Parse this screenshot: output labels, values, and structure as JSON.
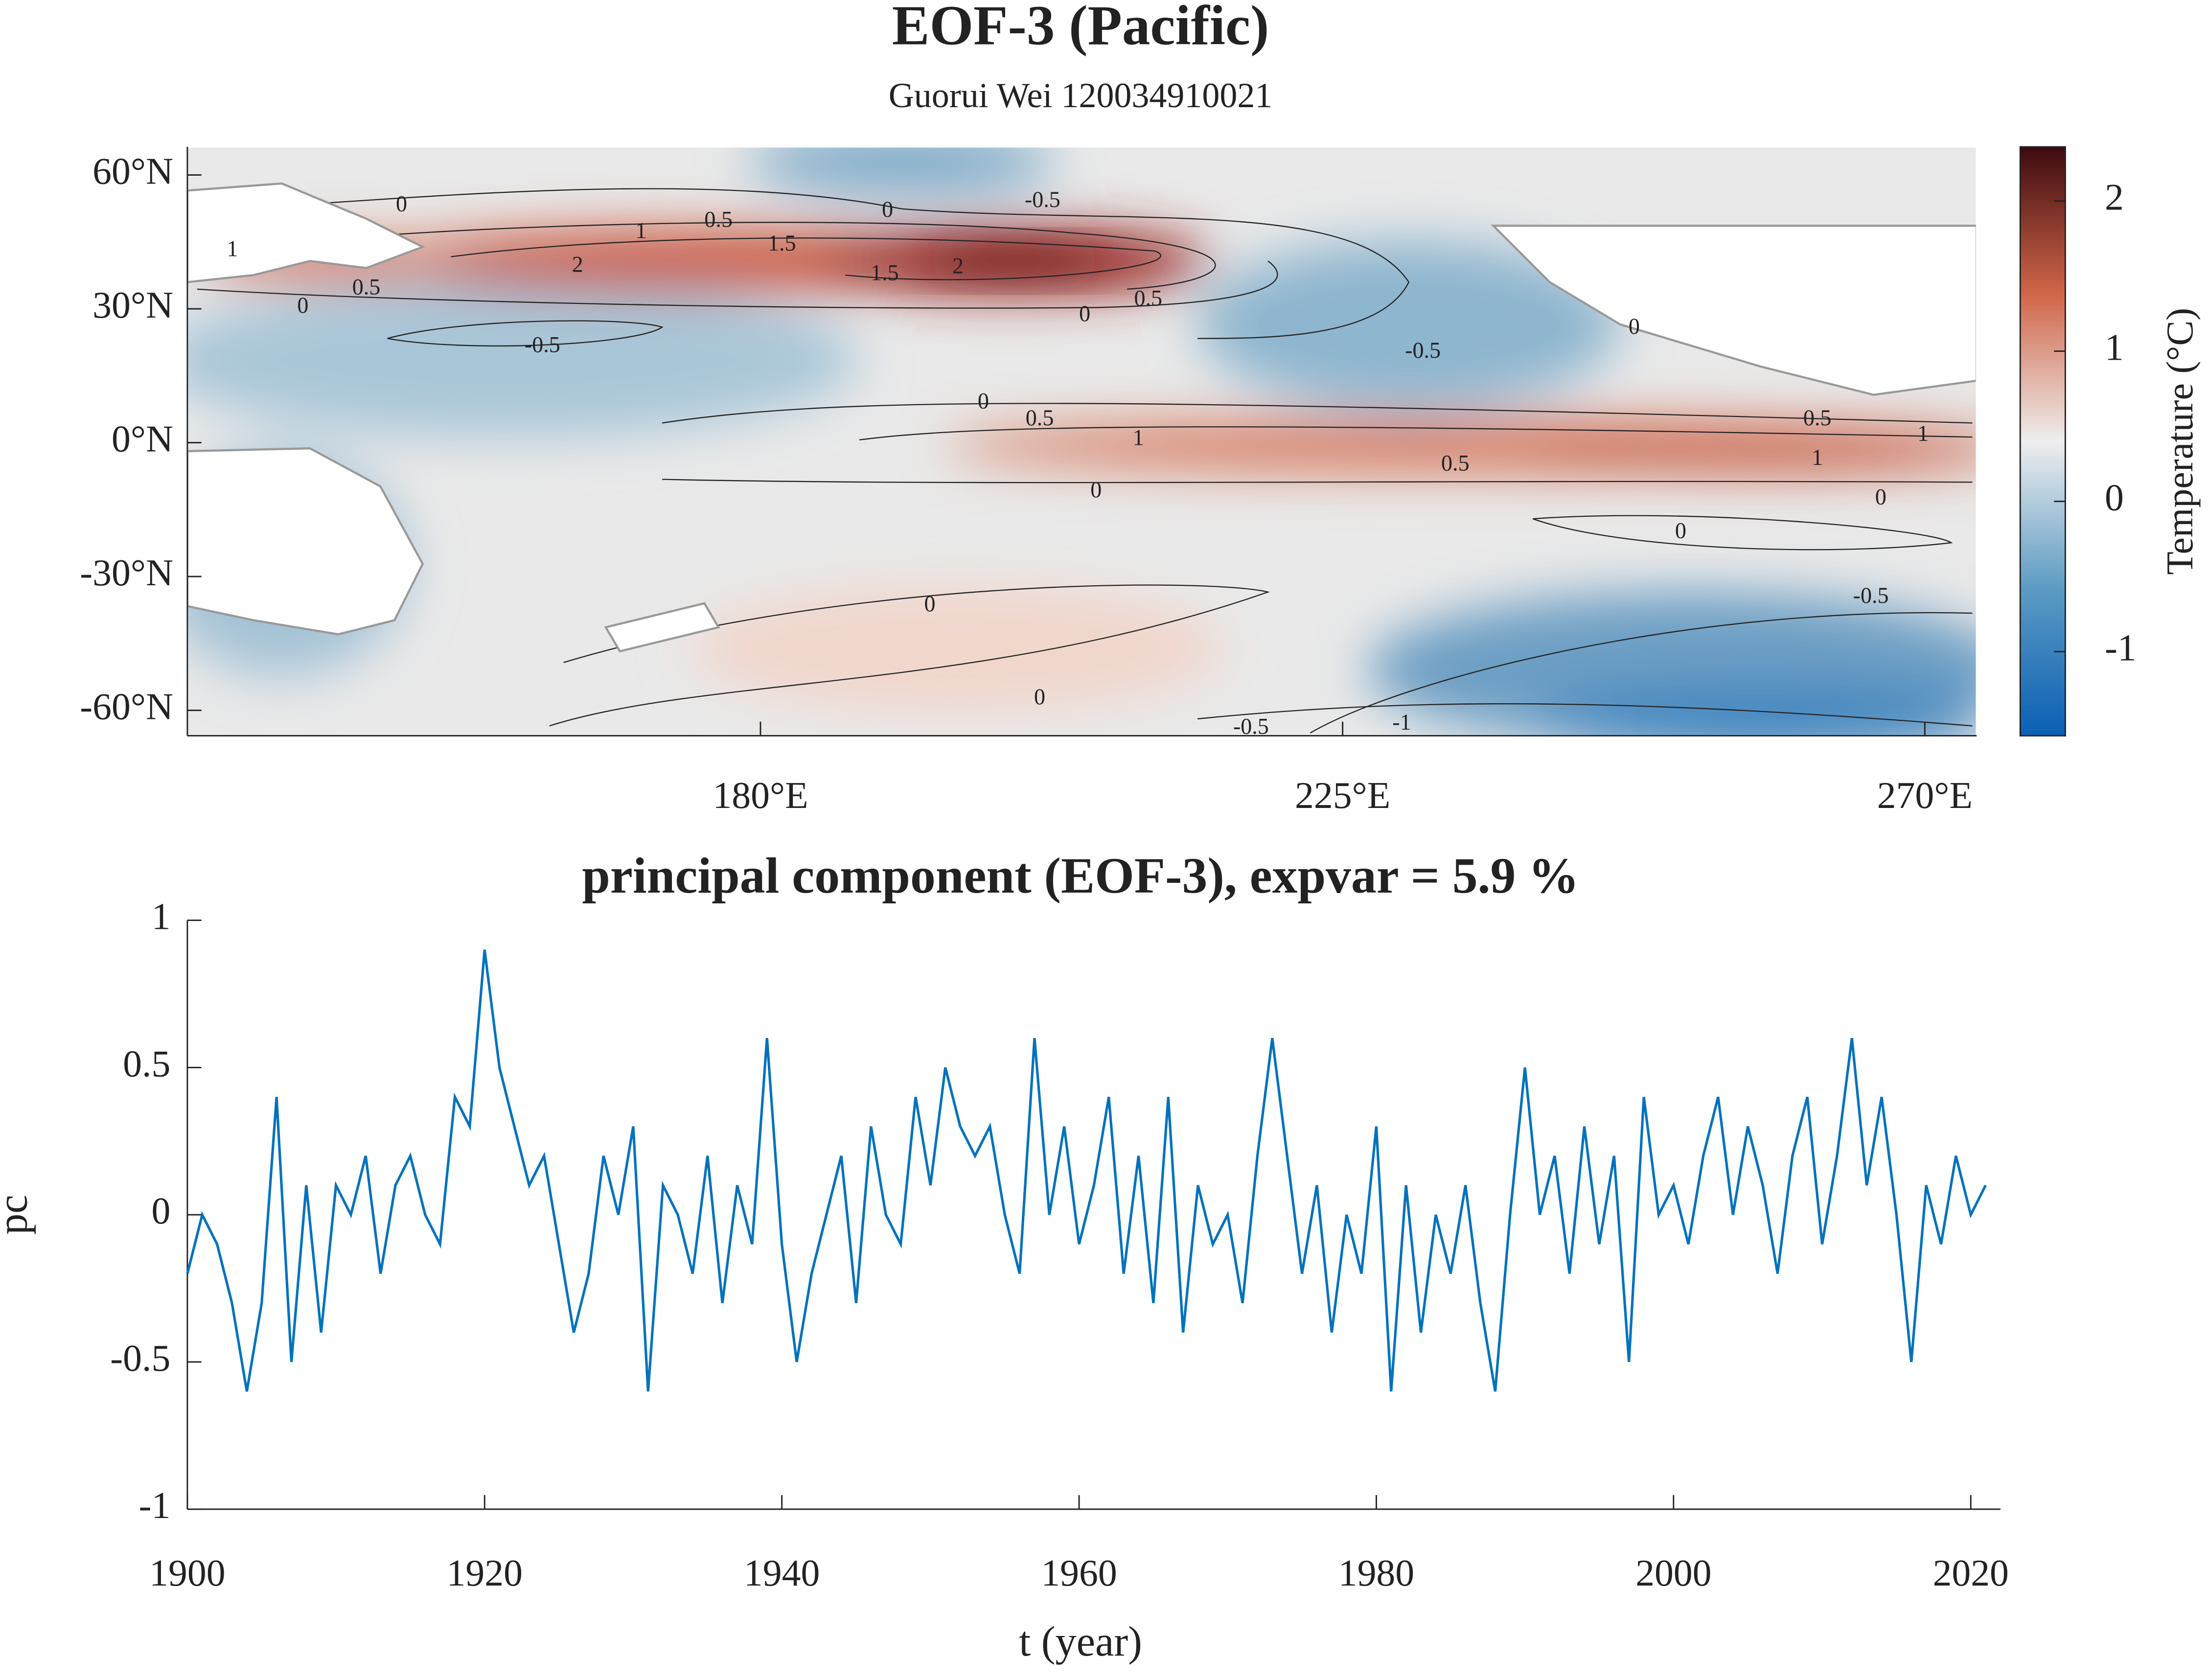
{
  "chart_data": [
    {
      "type": "map",
      "title": "EOF-3 (Pacific)",
      "subtitle": "Guorui Wei 120034910021",
      "xlim": [
        135.7,
        274
      ],
      "ylim": [
        -65.7,
        66.3
      ],
      "xticks": [
        {
          "value": 180,
          "label": "180°E"
        },
        {
          "value": 225,
          "label": "225°E"
        },
        {
          "value": 270,
          "label": "270°E"
        }
      ],
      "yticks": [
        {
          "value": 60,
          "label": "60°N"
        },
        {
          "value": 30,
          "label": "30°N"
        },
        {
          "value": 0,
          "label": "0°N"
        },
        {
          "value": -30,
          "label": "-30°N"
        },
        {
          "value": -60,
          "label": "-60°N"
        }
      ],
      "contour_levels": [
        -1,
        -0.5,
        0,
        0.5,
        1,
        1.5,
        2
      ],
      "colorbar": {
        "label": "Temperature (°C)",
        "lim": [
          -1.56,
          2.36
        ],
        "ticks": [
          -1,
          0,
          1,
          2
        ],
        "colors": [
          "#0a5fb4",
          "#5c9bc4",
          "#eeeeee",
          "#d06648",
          "#3d0a10"
        ]
      }
    },
    {
      "type": "line",
      "title": "principal component (EOF-3), expvar = 5.9 %",
      "xlabel": "t (year)",
      "ylabel": "pc",
      "xlim": [
        1900,
        2022
      ],
      "ylim": [
        -1,
        1
      ],
      "xticks": [
        1900,
        1920,
        1940,
        1960,
        1980,
        2000,
        2020
      ],
      "yticks": [
        -1,
        -0.5,
        0,
        0.5,
        1
      ],
      "x": [
        1900,
        1901,
        1902,
        1903,
        1904,
        1905,
        1906,
        1907,
        1908,
        1909,
        1910,
        1911,
        1912,
        1913,
        1914,
        1915,
        1916,
        1917,
        1918,
        1919,
        1920,
        1921,
        1922,
        1923,
        1924,
        1925,
        1926,
        1927,
        1928,
        1929,
        1930,
        1931,
        1932,
        1933,
        1934,
        1935,
        1936,
        1937,
        1938,
        1939,
        1940,
        1941,
        1942,
        1943,
        1944,
        1945,
        1946,
        1947,
        1948,
        1949,
        1950,
        1951,
        1952,
        1953,
        1954,
        1955,
        1956,
        1957,
        1958,
        1959,
        1960,
        1961,
        1962,
        1963,
        1964,
        1965,
        1966,
        1967,
        1968,
        1969,
        1970,
        1971,
        1972,
        1973,
        1974,
        1975,
        1976,
        1977,
        1978,
        1979,
        1980,
        1981,
        1982,
        1983,
        1984,
        1985,
        1986,
        1987,
        1988,
        1989,
        1990,
        1991,
        1992,
        1993,
        1994,
        1995,
        1996,
        1997,
        1998,
        1999,
        2000,
        2001,
        2002,
        2003,
        2004,
        2005,
        2006,
        2007,
        2008,
        2009,
        2010,
        2011,
        2012,
        2013,
        2014,
        2015,
        2016,
        2017,
        2018,
        2019,
        2020,
        2021
      ],
      "color": "#0072bd",
      "values": [
        -0.2,
        0.0,
        -0.1,
        -0.3,
        -0.6,
        -0.3,
        0.4,
        -0.5,
        0.1,
        -0.4,
        0.1,
        0.0,
        0.2,
        -0.2,
        0.1,
        0.2,
        0.0,
        -0.1,
        0.4,
        0.3,
        0.9,
        0.5,
        0.3,
        0.1,
        0.2,
        -0.1,
        -0.4,
        -0.2,
        0.2,
        0.0,
        0.3,
        -0.6,
        0.1,
        0.0,
        -0.2,
        0.2,
        -0.3,
        0.1,
        -0.1,
        0.6,
        -0.1,
        -0.5,
        -0.2,
        0.0,
        0.2,
        -0.3,
        0.3,
        0.0,
        -0.1,
        0.4,
        0.1,
        0.5,
        0.3,
        0.2,
        0.3,
        0.0,
        -0.2,
        0.6,
        0.0,
        0.3,
        -0.1,
        0.1,
        0.4,
        -0.2,
        0.2,
        -0.3,
        0.4,
        -0.4,
        0.1,
        -0.1,
        0.0,
        -0.3,
        0.2,
        0.6,
        0.2,
        -0.2,
        0.1,
        -0.4,
        0.0,
        -0.2,
        0.3,
        -0.6,
        0.1,
        -0.4,
        0.0,
        -0.2,
        0.1,
        -0.3,
        -0.6,
        0.0,
        0.5,
        0.0,
        0.2,
        -0.2,
        0.3,
        -0.1,
        0.2,
        -0.5,
        0.4,
        0.0,
        0.1,
        -0.1,
        0.2,
        0.4,
        0.0,
        0.3,
        0.1,
        -0.2,
        0.2,
        0.4,
        -0.1,
        0.2,
        0.6,
        0.1,
        0.4,
        0.0,
        -0.5,
        0.1,
        -0.1,
        0.2,
        0.0,
        0.1
      ]
    }
  ]
}
